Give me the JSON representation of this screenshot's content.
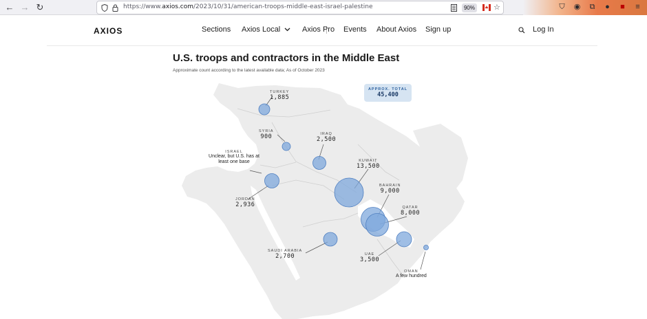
{
  "browser": {
    "url_prefix": "https://www.",
    "url_domain": "axios.com",
    "url_path": "/2023/10/31/american-troops-middle-east-israel-palestine",
    "zoom": "90%"
  },
  "site": {
    "logo": "AXIOS",
    "nav": [
      "Sections",
      "Axios Local",
      "Axios Pro",
      "Events",
      "About Axios",
      "Sign up"
    ],
    "login": "Log In"
  },
  "article": {
    "title": "U.S. troops and contractors in the Middle East",
    "subtitle": "Approximate count according to the latest available data; As of October 2023"
  },
  "map": {
    "total": {
      "label": "APPROX. TOTAL",
      "value": "45,400"
    },
    "bubble_color": "#7fa8dc",
    "countries": [
      {
        "country": "TURKEY",
        "value": "1,885"
      },
      {
        "country": "SYRIA",
        "value": "900"
      },
      {
        "country": "IRAQ",
        "value": "2,500"
      },
      {
        "country": "ISRAEL",
        "note": "Unclear, but U.S. has at least one base"
      },
      {
        "country": "KUWAIT",
        "value": "13,500"
      },
      {
        "country": "BAHRAIN",
        "value": "9,000"
      },
      {
        "country": "QATAR",
        "value": "8,000"
      },
      {
        "country": "JORDAN",
        "value": "2,936"
      },
      {
        "country": "SAUDI ARABIA",
        "value": "2,700"
      },
      {
        "country": "UAE",
        "value": "3,500"
      },
      {
        "country": "OMAN",
        "note": "A few hundred"
      }
    ]
  }
}
